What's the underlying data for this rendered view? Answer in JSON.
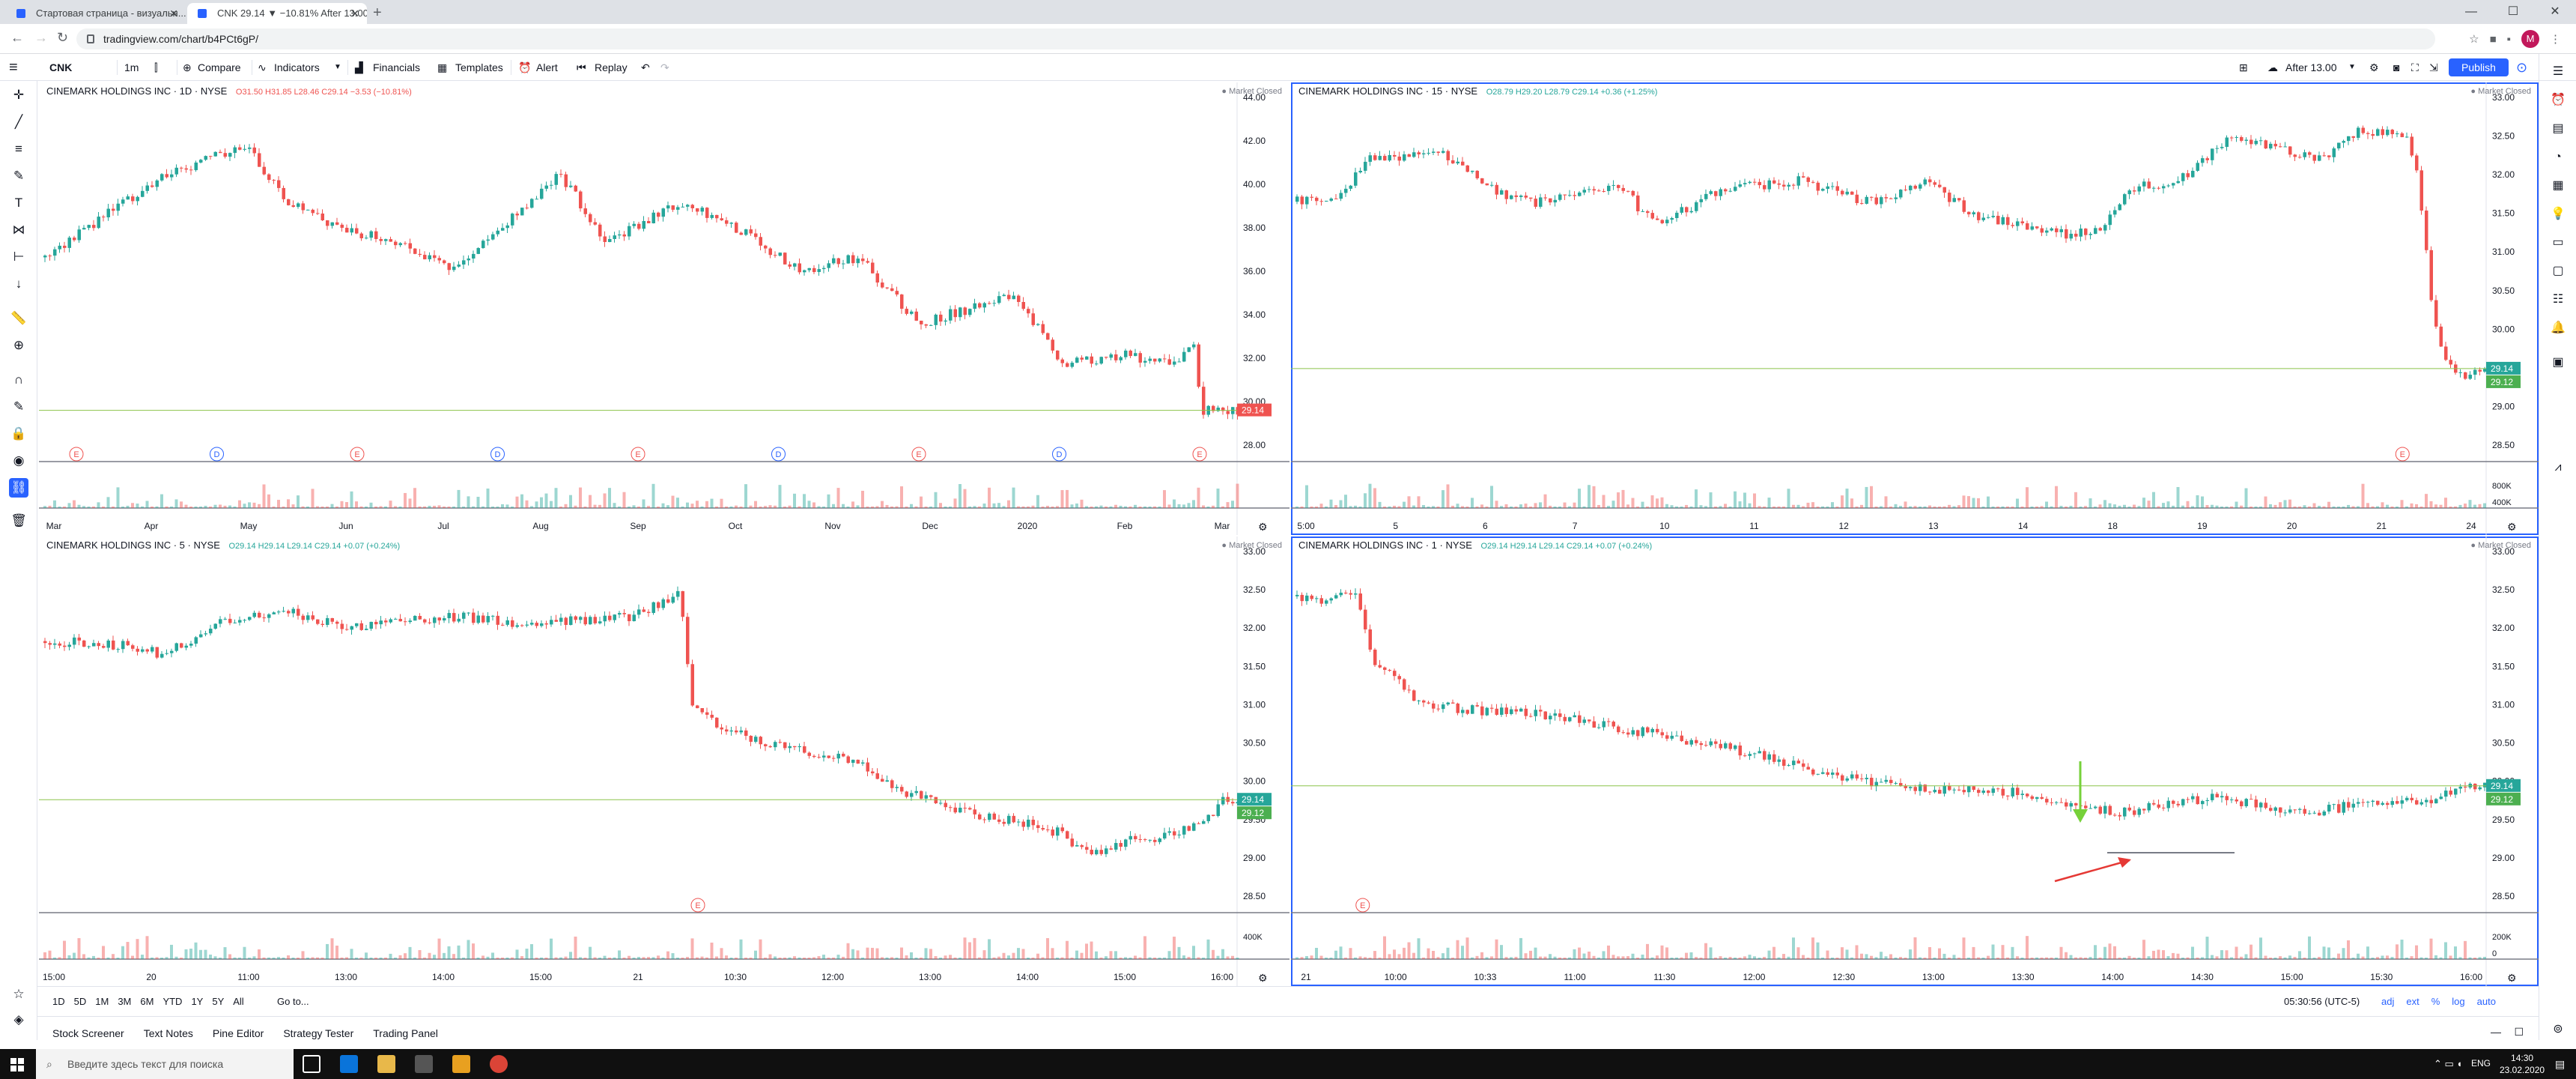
{
  "browser": {
    "tabs": [
      {
        "title": "Стартовая страница - визуальн...",
        "active": false
      },
      {
        "title": "CNK 29.14 ▼ −10.81% After 13.00",
        "active": true
      }
    ],
    "url": "tradingview.com/chart/b4PCt6gP/",
    "avatar": "M"
  },
  "toolbar": {
    "symbol": "CNK",
    "interval": "1m",
    "compare": "Compare",
    "indicators": "Indicators",
    "financials": "Financials",
    "templates": "Templates",
    "alert": "Alert",
    "replay": "Replay",
    "layout_name": "After 13.00",
    "publish": "Publish"
  },
  "colors": {
    "up": "#26a69a",
    "down": "#ef5350",
    "accent": "#2962ff",
    "price_line": "#8bc34a"
  },
  "icons": {
    "left_toolbar": [
      "crosshair-icon",
      "trend-line-icon",
      "fib-icon",
      "brush-icon",
      "text-icon",
      "pattern-icon",
      "prediction-icon",
      "arrow-down-icon",
      "ruler-icon",
      "zoom-icon",
      "magnet-icon",
      "lock-drawings-icon",
      "lock-icon",
      "eye-icon",
      "link-icon",
      "trash-icon",
      "star-icon",
      "layers-icon"
    ],
    "right_sidebar": [
      "watchlist-icon",
      "alerts-icon",
      "data-window-icon",
      "hotlist-icon",
      "calendar-icon",
      "ideas-icon",
      "streams-icon",
      "chat-icon",
      "calendar-2-icon",
      "bell-icon",
      "notifications-icon",
      "signal-icon",
      "help-icon"
    ]
  },
  "panes": [
    {
      "id": "pane-1d",
      "name": "CINEMARK HOLDINGS INC · 1D · NYSE",
      "ohlc": "O31.50 H31.85 L28.46 C29.14 −3.53 (−10.81%)",
      "status": "Market Closed",
      "direction": "down",
      "price_label_1": "29.14",
      "price_label_2": "",
      "y_ticks": [
        "44.00",
        "42.00",
        "40.00",
        "38.00",
        "36.00",
        "34.00",
        "32.00",
        "30.00",
        "28.00"
      ],
      "x_ticks": [
        "Mar",
        "Apr",
        "May",
        "Jun",
        "Jul",
        "Aug",
        "Sep",
        "Oct",
        "Nov",
        "Dec",
        "2020",
        "Feb",
        "Mar"
      ],
      "events": [
        "E",
        "D",
        "E",
        "D",
        "E",
        "D",
        "E",
        "D",
        "E"
      ],
      "vol_ticks": []
    },
    {
      "id": "pane-15",
      "name": "CINEMARK HOLDINGS INC · 15 · NYSE",
      "ohlc": "O28.79 H29.20 L28.79 C29.14 +0.36 (+1.25%)",
      "status": "Market Closed",
      "direction": "up",
      "price_label_1": "29.14",
      "price_label_2": "29.12",
      "y_ticks": [
        "33.00",
        "32.50",
        "32.00",
        "31.50",
        "31.00",
        "30.50",
        "30.00",
        "29.50",
        "29.00",
        "28.50"
      ],
      "x_ticks": [
        "5:00",
        "5",
        "6",
        "7",
        "10",
        "11",
        "12",
        "13",
        "14",
        "18",
        "19",
        "20",
        "21",
        "24"
      ],
      "events": [
        "E"
      ],
      "vol_ticks": [
        "800K",
        "400K"
      ]
    },
    {
      "id": "pane-5",
      "name": "CINEMARK HOLDINGS INC · 5 · NYSE",
      "ohlc": "O29.14 H29.14 L29.14 C29.14 +0.07 (+0.24%)",
      "status": "Market Closed",
      "direction": "up",
      "price_label_1": "29.14",
      "price_label_2": "29.12",
      "y_ticks": [
        "33.00",
        "32.50",
        "32.00",
        "31.50",
        "31.00",
        "30.50",
        "30.00",
        "29.50",
        "29.00",
        "28.50"
      ],
      "x_ticks": [
        "15:00",
        "20",
        "11:00",
        "13:00",
        "14:00",
        "15:00",
        "21",
        "10:30",
        "12:00",
        "13:00",
        "14:00",
        "15:00",
        "16:00"
      ],
      "events": [
        "E"
      ],
      "vol_ticks": [
        "400K"
      ]
    },
    {
      "id": "pane-1",
      "name": "CINEMARK HOLDINGS INC · 1 · NYSE",
      "ohlc": "O29.14 H29.14 L29.14 C29.14 +0.07 (+0.24%)",
      "status": "Market Closed",
      "direction": "up",
      "price_label_1": "29.14",
      "price_label_2": "29.12",
      "y_ticks": [
        "33.00",
        "32.50",
        "32.00",
        "31.50",
        "31.00",
        "30.50",
        "30.00",
        "29.50",
        "29.00",
        "28.50"
      ],
      "x_ticks": [
        "21",
        "10:00",
        "10:33",
        "11:00",
        "11:30",
        "12:00",
        "12:30",
        "13:00",
        "13:30",
        "14:00",
        "14:30",
        "15:00",
        "15:30",
        "16:00"
      ],
      "events": [
        "E"
      ],
      "vol_ticks": [
        "200K",
        "0"
      ]
    }
  ],
  "timebar": {
    "ranges": [
      "1D",
      "5D",
      "1M",
      "3M",
      "6M",
      "YTD",
      "1Y",
      "5Y",
      "All"
    ],
    "goto": "Go to...",
    "clock": "05:30:56 (UTC-5)",
    "options": [
      "adj",
      "ext",
      "%",
      "log",
      "auto"
    ]
  },
  "bottom_tabs": [
    "Stock Screener",
    "Text Notes",
    "Pine Editor",
    "Strategy Tester",
    "Trading Panel"
  ],
  "taskbar": {
    "search_placeholder": "Введите здесь текст для поиска",
    "lang": "ENG",
    "time": "14:30",
    "date": "23.02.2020"
  }
}
